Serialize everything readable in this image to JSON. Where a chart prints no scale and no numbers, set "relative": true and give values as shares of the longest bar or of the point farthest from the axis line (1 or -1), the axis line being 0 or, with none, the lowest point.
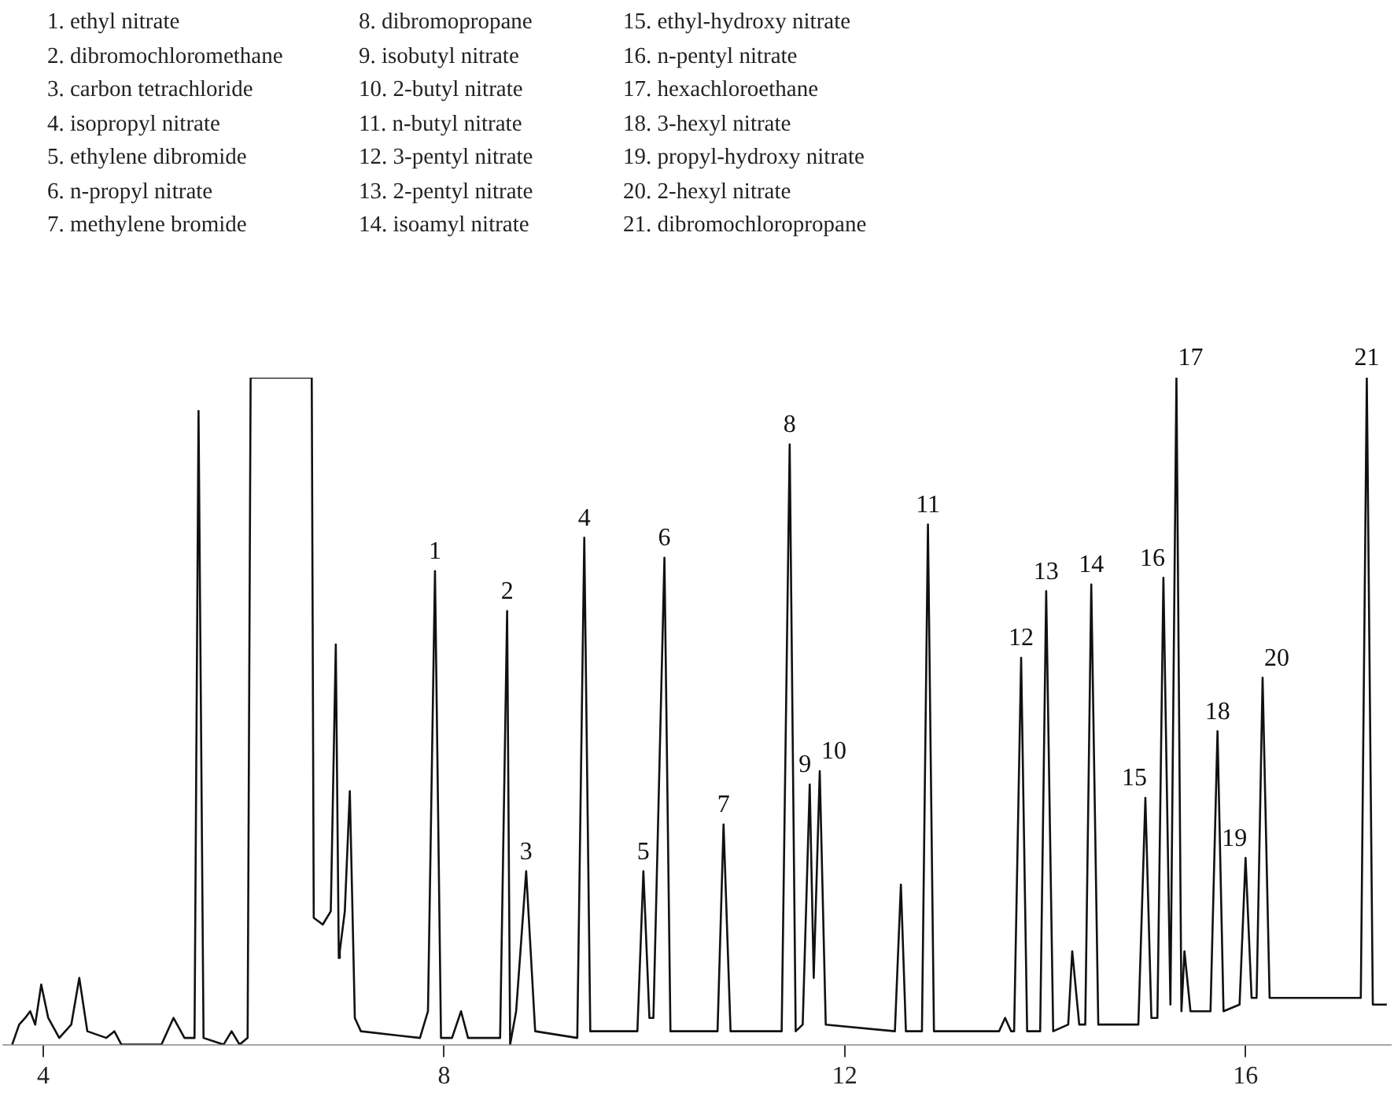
{
  "chart_data": {
    "type": "line",
    "relative": true,
    "marker": "none",
    "xlim": [
      3.6,
      17.45
    ],
    "xticks": [
      4,
      8,
      12,
      16
    ],
    "x": [
      3.69,
      3.76,
      3.82,
      3.87,
      3.92,
      3.98,
      4.05,
      4.16,
      4.28,
      4.36,
      4.44,
      4.63,
      4.71,
      4.78,
      5.18,
      5.3,
      5.41,
      5.51,
      5.55,
      5.6,
      5.8,
      5.88,
      5.96,
      6.04,
      6.07,
      6.68,
      6.7,
      6.79,
      6.87,
      6.92,
      6.95,
      6.96,
      7.01,
      7.06,
      7.11,
      7.17,
      7.76,
      7.84,
      7.91,
      7.97,
      8.08,
      8.17,
      8.24,
      8.56,
      8.63,
      8.66,
      8.72,
      8.82,
      8.91,
      9.33,
      9.4,
      9.46,
      9.93,
      9.99,
      10.05,
      10.09,
      10.2,
      10.26,
      10.73,
      10.79,
      10.86,
      11.37,
      11.45,
      11.51,
      11.58,
      11.65,
      11.69,
      11.75,
      11.81,
      12.5,
      12.56,
      12.61,
      12.77,
      12.83,
      12.89,
      13.54,
      13.6,
      13.66,
      13.69,
      13.76,
      13.82,
      13.95,
      14.01,
      14.08,
      14.23,
      14.27,
      14.34,
      14.4,
      14.46,
      14.53,
      14.93,
      15.0,
      15.06,
      15.12,
      15.18,
      15.25,
      15.31,
      15.36,
      15.39,
      15.45,
      15.65,
      15.72,
      15.78,
      15.94,
      16.0,
      16.06,
      16.11,
      16.17,
      16.24,
      17.15,
      17.21,
      17.27,
      17.41
    ],
    "series": [
      {
        "color": "#111111",
        "values": [
          0.0,
          0.03,
          0.04,
          0.05,
          0.03,
          0.09,
          0.04,
          0.01,
          0.03,
          0.1,
          0.02,
          0.01,
          0.02,
          0.0,
          0.0,
          0.04,
          0.01,
          0.01,
          0.95,
          0.01,
          0.0,
          0.02,
          0.0,
          0.01,
          1,
          1,
          0.19,
          0.18,
          0.2,
          0.6,
          0.13,
          0.14,
          0.2,
          0.38,
          0.04,
          0.02,
          0.01,
          0.05,
          0.71,
          0.01,
          0.01,
          0.05,
          0.01,
          0.01,
          0.65,
          0.0,
          0.05,
          0.26,
          0.02,
          0.01,
          0.76,
          0.02,
          0.02,
          0.26,
          0.04,
          0.04,
          0.73,
          0.02,
          0.02,
          0.33,
          0.02,
          0.02,
          0.9,
          0.02,
          0.03,
          0.39,
          0.1,
          0.41,
          0.03,
          0.02,
          0.24,
          0.02,
          0.02,
          0.78,
          0.02,
          0.02,
          0.04,
          0.02,
          0.02,
          0.58,
          0.02,
          0.02,
          0.68,
          0.02,
          0.03,
          0.14,
          0.03,
          0.03,
          0.69,
          0.03,
          0.03,
          0.37,
          0.04,
          0.04,
          0.7,
          0.06,
          1,
          0.05,
          0.14,
          0.05,
          0.05,
          0.47,
          0.05,
          0.06,
          0.28,
          0.07,
          0.07,
          0.55,
          0.07,
          0.07,
          1,
          0.06,
          0.06
        ]
      }
    ],
    "annotations": [
      "1. ethyl nitrate",
      "2. dibromochloromethane",
      "3. carbon tetrachloride",
      "4. isopropyl nitrate",
      "5. ethylene dibromide",
      "6. n-propyl nitrate",
      "7. methylene bromide",
      "8. dibromopropane",
      "9. isobutyl nitrate",
      "10. 2-butyl nitrate",
      "11. n-butyl nitrate",
      "12. 3-pentyl nitrate",
      "13. 2-pentyl nitrate",
      "14. isoamyl nitrate",
      "15. ethyl-hydroxy nitrate",
      "16. n-pentyl nitrate",
      "17. hexachloroethane",
      "18. 3-hexyl nitrate",
      "19. propyl-hydroxy nitrate",
      "20. 2-hexyl nitrate",
      "21. dibromochloropropane",
      {
        "text": "1",
        "x": 7.91,
        "y": 0.71
      },
      {
        "text": "2",
        "x": 8.63,
        "y": 0.65
      },
      {
        "text": "3",
        "x": 8.82,
        "y": 0.26
      },
      {
        "text": "4",
        "x": 9.4,
        "y": 0.76
      },
      {
        "text": "5",
        "x": 9.99,
        "y": 0.26
      },
      {
        "text": "6",
        "x": 10.2,
        "y": 0.73
      },
      {
        "text": "7",
        "x": 10.79,
        "y": 0.33
      },
      {
        "text": "8",
        "x": 11.45,
        "y": 0.9
      },
      {
        "text": "9",
        "x": 11.65,
        "y": 0.39
      },
      {
        "text": "10",
        "x": 11.75,
        "y": 0.41
      },
      {
        "text": "11",
        "x": 12.83,
        "y": 0.78
      },
      {
        "text": "12",
        "x": 13.76,
        "y": 0.58
      },
      {
        "text": "13",
        "x": 14.01,
        "y": 0.68
      },
      {
        "text": "14",
        "x": 14.46,
        "y": 0.69
      },
      {
        "text": "15",
        "x": 15.0,
        "y": 0.37
      },
      {
        "text": "16",
        "x": 15.18,
        "y": 0.7
      },
      {
        "text": "17",
        "x": 15.31,
        "y": 1
      },
      {
        "text": "18",
        "x": 15.72,
        "y": 0.47
      },
      {
        "text": "19",
        "x": 16.0,
        "y": 0.28
      },
      {
        "text": "20",
        "x": 16.17,
        "y": 0.55
      },
      {
        "text": "21",
        "x": 17.21,
        "y": 1
      }
    ]
  }
}
